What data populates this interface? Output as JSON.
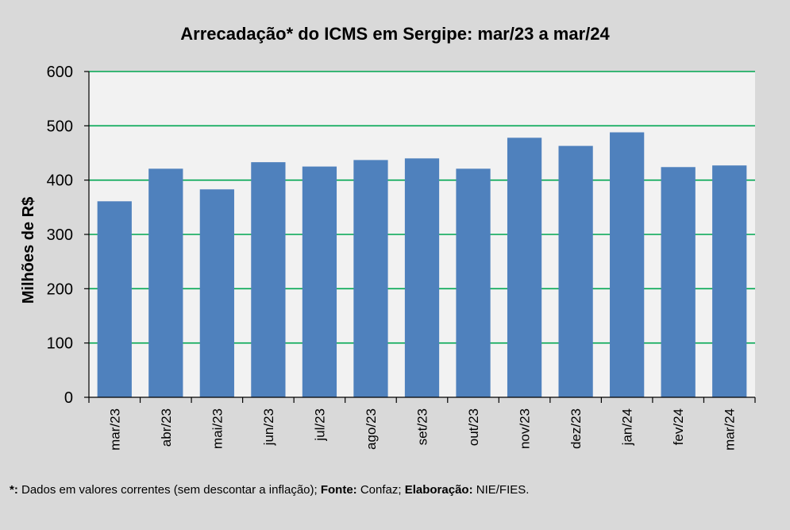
{
  "chart_data": {
    "type": "bar",
    "title": "Arrecadação* do ICMS em Sergipe: mar/23 a mar/24",
    "ylabel": "Milhões de R$",
    "xlabel": "",
    "categories": [
      "mar/23",
      "abr/23",
      "mai/23",
      "jun/23",
      "jul/23",
      "ago/23",
      "set/23",
      "out/23",
      "nov/23",
      "dez/23",
      "jan/24",
      "fev/24",
      "mar/24"
    ],
    "values": [
      361,
      421,
      383,
      433,
      425,
      437,
      440,
      421,
      478,
      463,
      488,
      424,
      427
    ],
    "ylim": [
      0,
      600
    ],
    "yticks": [
      0,
      100,
      200,
      300,
      400,
      500,
      600
    ],
    "grid": true,
    "legend": "none",
    "colors": {
      "bar": "#4f81bd",
      "grid": "#00a651",
      "plot_bg": "#f2f2f2",
      "page_bg": "#d9d9d9"
    }
  },
  "footnote": {
    "star_label": "*:",
    "star_text": " Dados em valores correntes (sem descontar a inflação); ",
    "source_label": "Fonte:",
    "source_text": " Confaz; ",
    "author_label": "Elaboração:",
    "author_text": " NIE/FIES."
  }
}
